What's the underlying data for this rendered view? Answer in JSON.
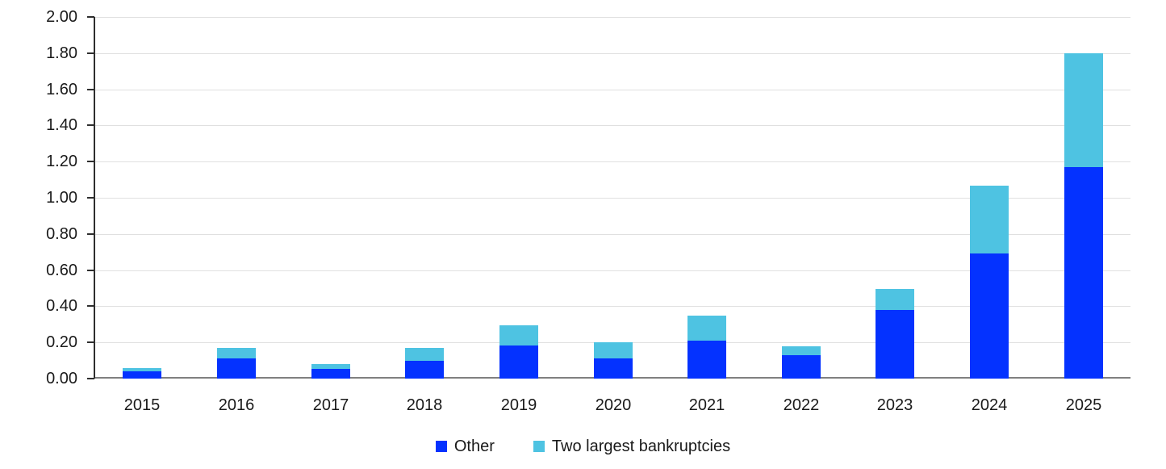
{
  "chart_data": {
    "type": "bar",
    "stacked": true,
    "title": "",
    "xlabel": "",
    "ylabel": "",
    "categories": [
      "2015",
      "2016",
      "2017",
      "2018",
      "2019",
      "2020",
      "2021",
      "2022",
      "2023",
      "2024",
      "2025"
    ],
    "series": [
      {
        "name": "Other",
        "color": "#0432ff",
        "values": [
          0.04,
          0.11,
          0.055,
          0.1,
          0.185,
          0.11,
          0.21,
          0.13,
          0.38,
          0.69,
          1.17
        ]
      },
      {
        "name": "Two largest bankruptcies",
        "color": "#4ec3e2",
        "values": [
          0.02,
          0.06,
          0.025,
          0.07,
          0.11,
          0.09,
          0.14,
          0.05,
          0.115,
          0.375,
          0.63
        ]
      }
    ],
    "ylim": [
      0,
      2.0
    ],
    "ytick_step": 0.2,
    "ytick_labels": [
      "0.00",
      "0.20",
      "0.40",
      "0.60",
      "0.80",
      "1.00",
      "1.20",
      "1.40",
      "1.60",
      "1.80",
      "2.00"
    ],
    "grid": true,
    "legend_position": "bottom-center"
  },
  "style": {
    "gridline_color": "#e0e0e0",
    "baseline_color": "#808080",
    "axis_color": "#2e2e2e",
    "text_color": "#1a1a1a",
    "background": "#ffffff"
  }
}
